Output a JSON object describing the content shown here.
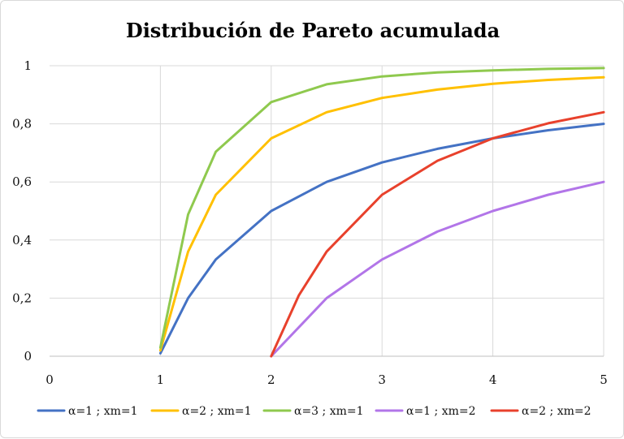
{
  "chart_data": {
    "type": "line",
    "title": "Distribución de Pareto acumulada",
    "xlabel": "",
    "ylabel": "",
    "xlim": [
      0,
      5
    ],
    "ylim": [
      0,
      1
    ],
    "x_ticks": [
      "0",
      "1",
      "2",
      "3",
      "4",
      "5"
    ],
    "y_ticks": [
      "0",
      "0,2",
      "0,4",
      "0,6",
      "0,8",
      "1"
    ],
    "grid": true,
    "legend_position": "bottom",
    "series": [
      {
        "name": "α=1 ; xm=1",
        "color": "#4472C4",
        "x": [
          1,
          1.25,
          1.5,
          2,
          2.5,
          3,
          3.5,
          4,
          4.5,
          5
        ],
        "y": [
          0.01,
          0.2,
          0.333,
          0.5,
          0.6,
          0.667,
          0.714,
          0.75,
          0.778,
          0.8
        ]
      },
      {
        "name": "α=2 ; xm=1",
        "color": "#FFC000",
        "x": [
          1,
          1.25,
          1.5,
          2,
          2.5,
          3,
          3.5,
          4,
          4.5,
          5
        ],
        "y": [
          0.02,
          0.36,
          0.556,
          0.75,
          0.84,
          0.889,
          0.918,
          0.938,
          0.951,
          0.96
        ]
      },
      {
        "name": "α=3 ; xm=1",
        "color": "#8FC94E",
        "x": [
          1,
          1.25,
          1.5,
          2,
          2.5,
          3,
          3.5,
          4,
          4.5,
          5
        ],
        "y": [
          0.03,
          0.488,
          0.704,
          0.875,
          0.936,
          0.963,
          0.977,
          0.984,
          0.989,
          0.992
        ]
      },
      {
        "name": "α=1 ; xm=2",
        "color": "#B275E8",
        "x": [
          2,
          2.5,
          3,
          3.5,
          4,
          4.5,
          5
        ],
        "y": [
          0.0,
          0.2,
          0.333,
          0.429,
          0.5,
          0.556,
          0.6
        ]
      },
      {
        "name": "α=2 ; xm=2",
        "color": "#E8412C",
        "x": [
          2,
          2.25,
          2.5,
          3,
          3.5,
          4,
          4.5,
          5
        ],
        "y": [
          0.0,
          0.21,
          0.36,
          0.556,
          0.673,
          0.75,
          0.802,
          0.84
        ]
      }
    ]
  }
}
